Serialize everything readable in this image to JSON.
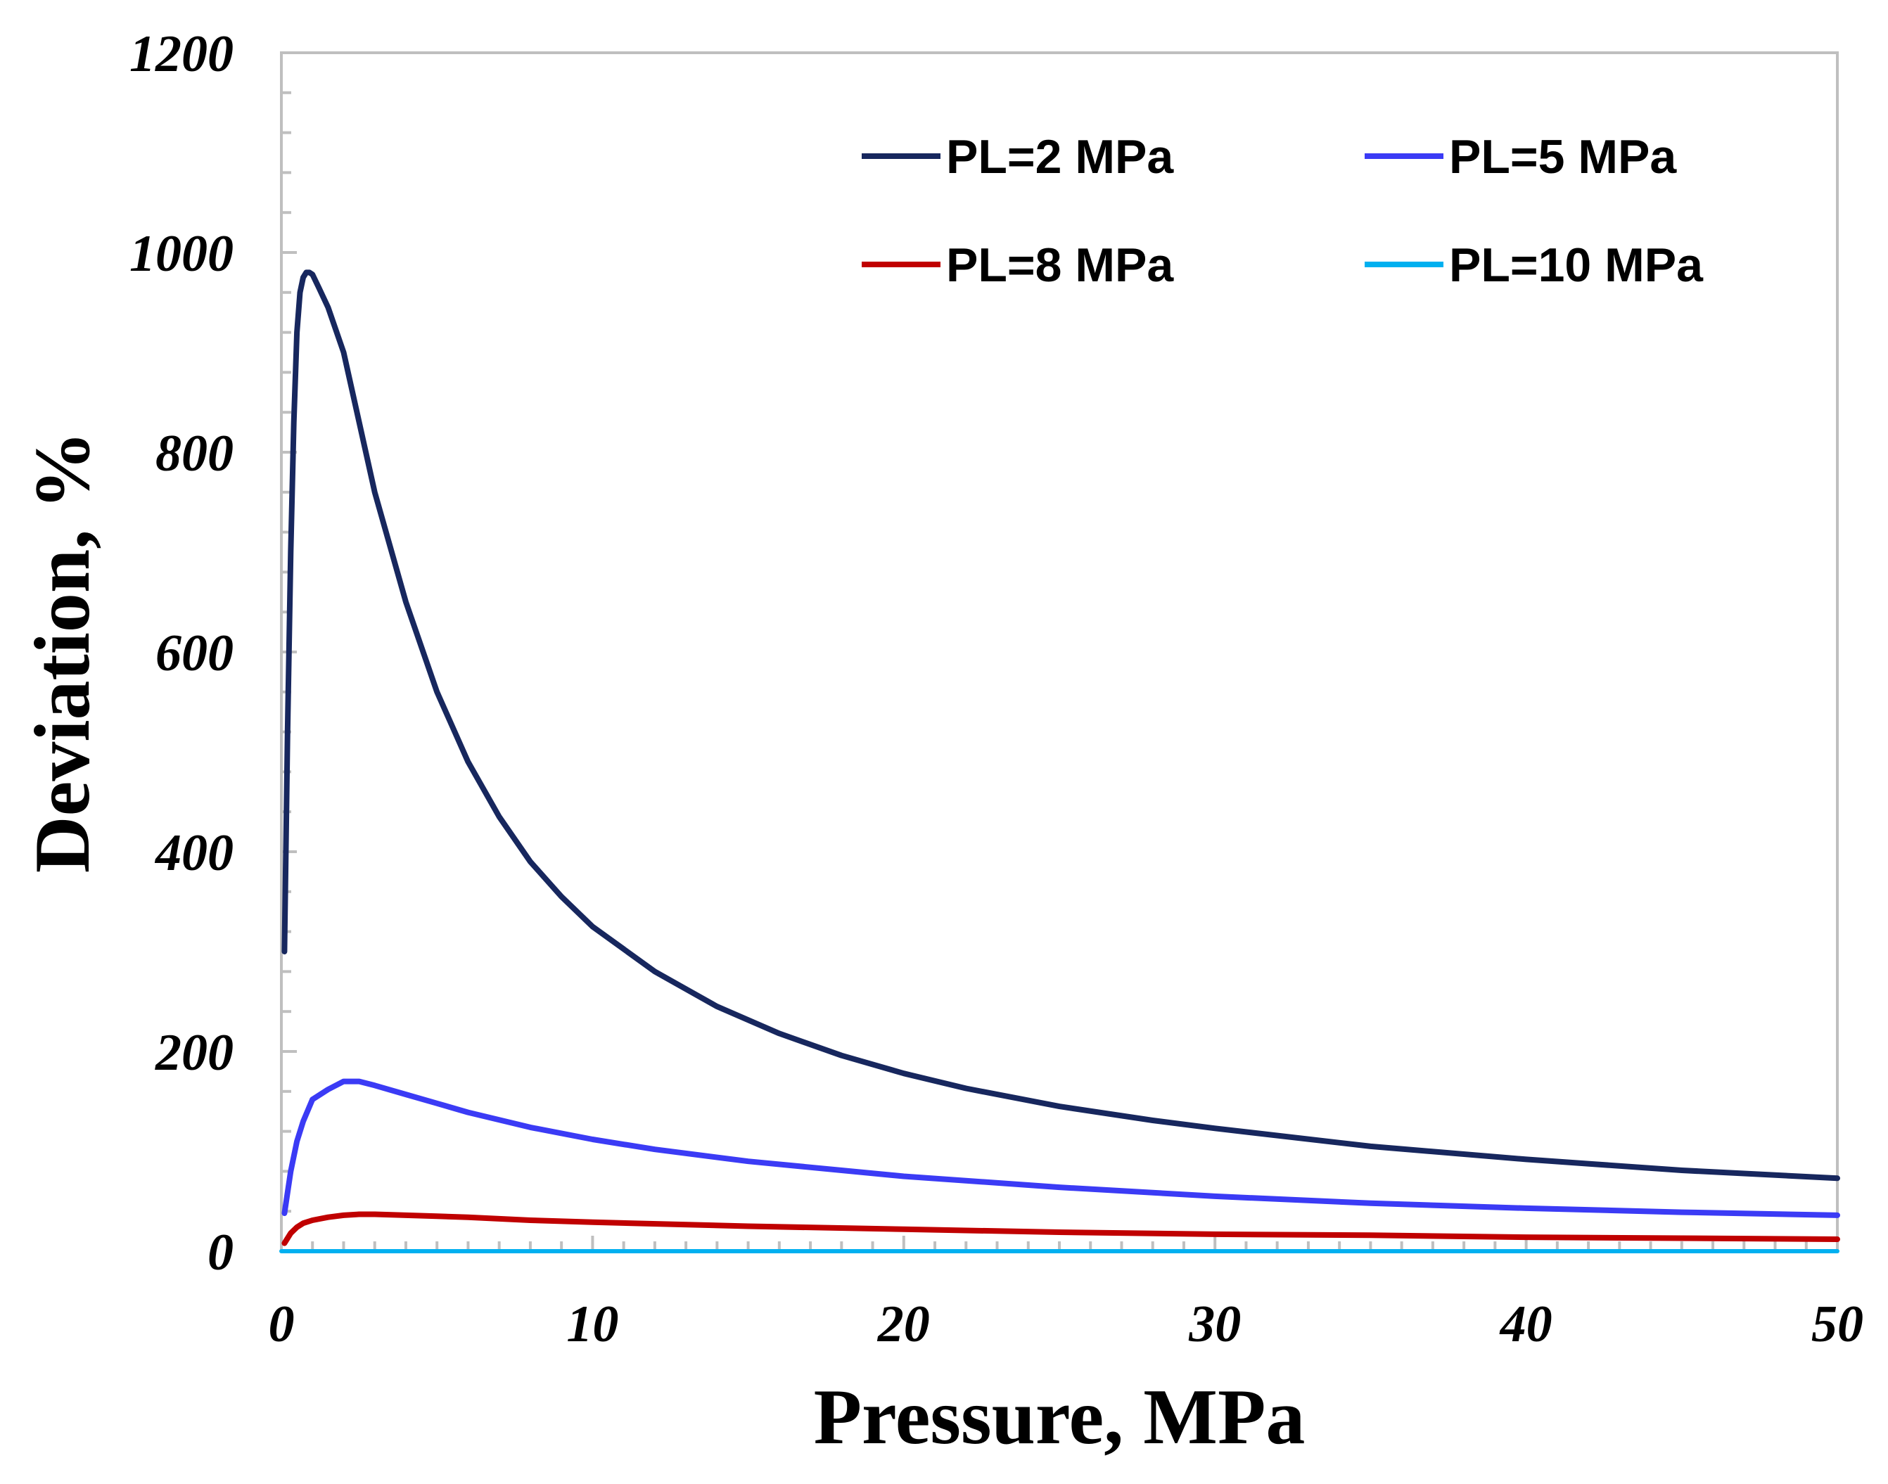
{
  "chart_data": {
    "type": "line",
    "title": "",
    "xlabel": "Pressure, MPa",
    "ylabel": "Deviation, %",
    "xlim": [
      0,
      50
    ],
    "ylim": [
      0,
      1200
    ],
    "xticks": [
      0,
      10,
      20,
      30,
      40,
      50
    ],
    "yticks": [
      0,
      200,
      400,
      600,
      800,
      1000,
      1200
    ],
    "xtick_labels": [
      "0",
      "10",
      "20",
      "30",
      "40",
      "50"
    ],
    "ytick_labels": [
      "0",
      "200",
      "400",
      "600",
      "800",
      "1000",
      "1200"
    ],
    "legend_position": "top-right",
    "series": [
      {
        "name": "PL=2 MPa",
        "color": "#17275e",
        "x": [
          0.1,
          0.2,
          0.3,
          0.4,
          0.5,
          0.6,
          0.7,
          0.8,
          0.9,
          1.0,
          1.2,
          1.5,
          2.0,
          2.5,
          3.0,
          4.0,
          5.0,
          6.0,
          7.0,
          8.0,
          9.0,
          10.0,
          12.0,
          14.0,
          16.0,
          18.0,
          20.0,
          22.0,
          25.0,
          28.0,
          30.0,
          35.0,
          40.0,
          45.0,
          50.0
        ],
        "y": [
          300,
          520,
          700,
          830,
          920,
          960,
          975,
          980,
          980,
          978,
          965,
          945,
          900,
          830,
          760,
          650,
          560,
          490,
          435,
          390,
          355,
          325,
          280,
          245,
          218,
          196,
          178,
          163,
          145,
          131,
          123,
          105,
          92,
          81,
          73
        ]
      },
      {
        "name": "PL=5 MPa",
        "color": "#3b3bf5",
        "x": [
          0.1,
          0.3,
          0.5,
          0.7,
          1.0,
          1.5,
          2.0,
          2.5,
          3.0,
          4.0,
          5.0,
          6.0,
          8.0,
          10.0,
          12.0,
          15.0,
          20.0,
          25.0,
          30.0,
          35.0,
          40.0,
          45.0,
          50.0
        ],
        "y": [
          38,
          80,
          110,
          130,
          152,
          162,
          170,
          170,
          166,
          157,
          148,
          139,
          124,
          112,
          102,
          90,
          75,
          64,
          55,
          48,
          43,
          39,
          36
        ]
      },
      {
        "name": "PL=8 MPa",
        "color": "#c00000",
        "x": [
          0.1,
          0.3,
          0.5,
          0.7,
          1.0,
          1.5,
          2.0,
          2.5,
          3.0,
          4.0,
          5.0,
          6.0,
          8.0,
          10.0,
          15.0,
          20.0,
          25.0,
          30.0,
          35.0,
          40.0,
          45.0,
          50.0
        ],
        "y": [
          8,
          18,
          24,
          28,
          31,
          34,
          36,
          37,
          37,
          36,
          35,
          34,
          31,
          29,
          25,
          22,
          19,
          17,
          16,
          14,
          13,
          12
        ]
      },
      {
        "name": "PL=10 MPa",
        "color": "#00b0f0",
        "x": [
          0,
          50
        ],
        "y": [
          0,
          0
        ]
      }
    ]
  }
}
